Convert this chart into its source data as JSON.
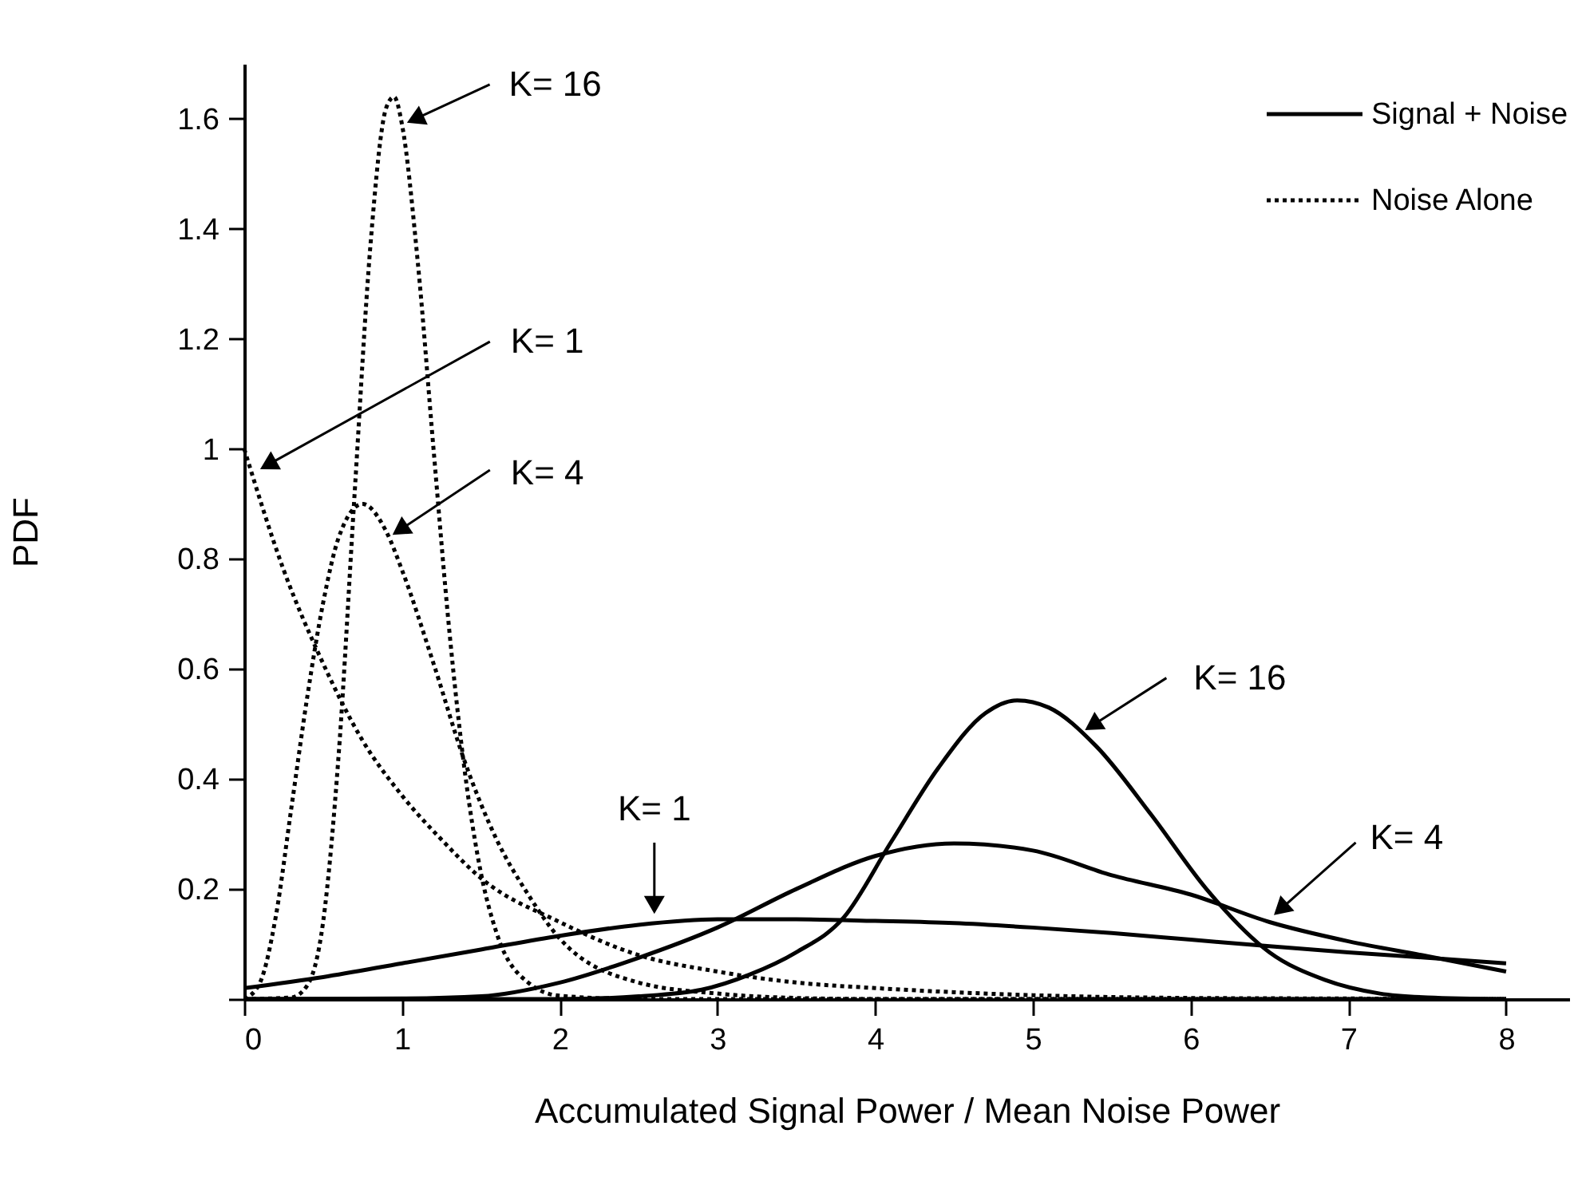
{
  "chart_data": {
    "type": "line",
    "xlabel": "Accumulated Signal Power / Mean Noise Power",
    "ylabel": "PDF",
    "xlim": [
      0,
      8.4
    ],
    "ylim": [
      0,
      1.7
    ],
    "xticks": [
      0,
      1,
      2,
      3,
      4,
      5,
      6,
      7,
      8
    ],
    "yticks": [
      {
        "value": 0,
        "label": null
      },
      0.2,
      0.4,
      0.6,
      0.8,
      1,
      1.2,
      1.4,
      1.6
    ],
    "grid": false,
    "legend": "top right",
    "marker": "none",
    "series": [
      {
        "name": "Signal + Noise",
        "color": "#000000",
        "line_style": "solid",
        "x": [
          0,
          0.5,
          1,
          1.5,
          2,
          2.5,
          3,
          3.5,
          4,
          4.5,
          5,
          5.5,
          6,
          6.5,
          7,
          7.5,
          8
        ],
        "values": [
          0.02,
          0.04,
          0.065,
          0.09,
          0.115,
          0.135,
          0.145,
          0.145,
          0.142,
          0.138,
          0.13,
          0.12,
          0.108,
          0.096,
          0.085,
          0.075,
          0.065
        ]
      },
      {
        "color": "#000000",
        "line_style": "solid",
        "x": [
          0,
          1,
          1.5,
          2,
          2.5,
          3,
          3.5,
          4,
          4.5,
          5,
          5.5,
          6,
          6.5,
          7,
          7.5,
          8
        ],
        "values": [
          0,
          0.001,
          0.005,
          0.03,
          0.075,
          0.13,
          0.2,
          0.26,
          0.283,
          0.27,
          0.225,
          0.19,
          0.14,
          0.105,
          0.078,
          0.05
        ]
      },
      {
        "color": "#000000",
        "line_style": "solid",
        "x": [
          0,
          2,
          2.5,
          2.9,
          3.2,
          3.5,
          3.8,
          4.1,
          4.4,
          4.7,
          4.9,
          5.1,
          5.4,
          5.75,
          6.1,
          6.5,
          6.85,
          7.2,
          7.5,
          8
        ],
        "values": [
          0,
          0,
          0.005,
          0.017,
          0.044,
          0.085,
          0.148,
          0.285,
          0.42,
          0.52,
          0.543,
          0.53,
          0.46,
          0.335,
          0.2,
          0.085,
          0.035,
          0.01,
          0.003,
          0
        ]
      },
      {
        "name": "Noise Alone",
        "color": "#000000",
        "line_style": "dotted",
        "x": [
          0,
          0.25,
          0.5,
          0.75,
          1,
          1.25,
          1.5,
          2,
          2.5,
          3,
          3.5,
          4,
          5,
          6,
          7,
          8
        ],
        "values": [
          1,
          0.78,
          0.61,
          0.47,
          0.37,
          0.29,
          0.22,
          0.14,
          0.08,
          0.05,
          0.03,
          0.02,
          0.007,
          0.002,
          0.001,
          0
        ]
      },
      {
        "color": "#000000",
        "line_style": "dotted",
        "x": [
          0,
          0.1,
          0.2,
          0.3,
          0.4,
          0.5,
          0.6,
          0.75,
          0.9,
          1,
          1.2,
          1.4,
          1.6,
          1.8,
          2,
          2.5,
          3,
          3.5,
          4,
          8
        ],
        "values": [
          0,
          0.03,
          0.15,
          0.35,
          0.55,
          0.72,
          0.84,
          0.9,
          0.85,
          0.78,
          0.61,
          0.43,
          0.29,
          0.19,
          0.11,
          0.03,
          0.01,
          0.002,
          0,
          0
        ]
      },
      {
        "color": "#000000",
        "line_style": "dotted",
        "x": [
          0,
          0.3,
          0.4,
          0.5,
          0.6,
          0.7,
          0.8,
          0.9,
          0.95,
          1,
          1.1,
          1.2,
          1.3,
          1.4,
          1.5,
          1.6,
          1.8,
          2,
          2.5,
          8
        ],
        "values": [
          0,
          0.003,
          0.025,
          0.14,
          0.45,
          0.92,
          1.37,
          1.62,
          1.64,
          1.59,
          1.34,
          1,
          0.67,
          0.41,
          0.23,
          0.12,
          0.03,
          0.006,
          0,
          0
        ]
      }
    ],
    "annotations": [
      {
        "text": "K= 16",
        "x": 1.01,
        "y": 1.59
      },
      {
        "text": "K= 1",
        "x": 0.08,
        "y": 0.96
      },
      {
        "text": "K= 4",
        "x": 0.92,
        "y": 0.84
      },
      {
        "text": "K= 1",
        "x": 2.6,
        "y": 0.148
      },
      {
        "text": "K= 16",
        "x": 5.31,
        "y": 0.485
      },
      {
        "text": "K= 4",
        "x": 6.51,
        "y": 0.148
      }
    ]
  }
}
